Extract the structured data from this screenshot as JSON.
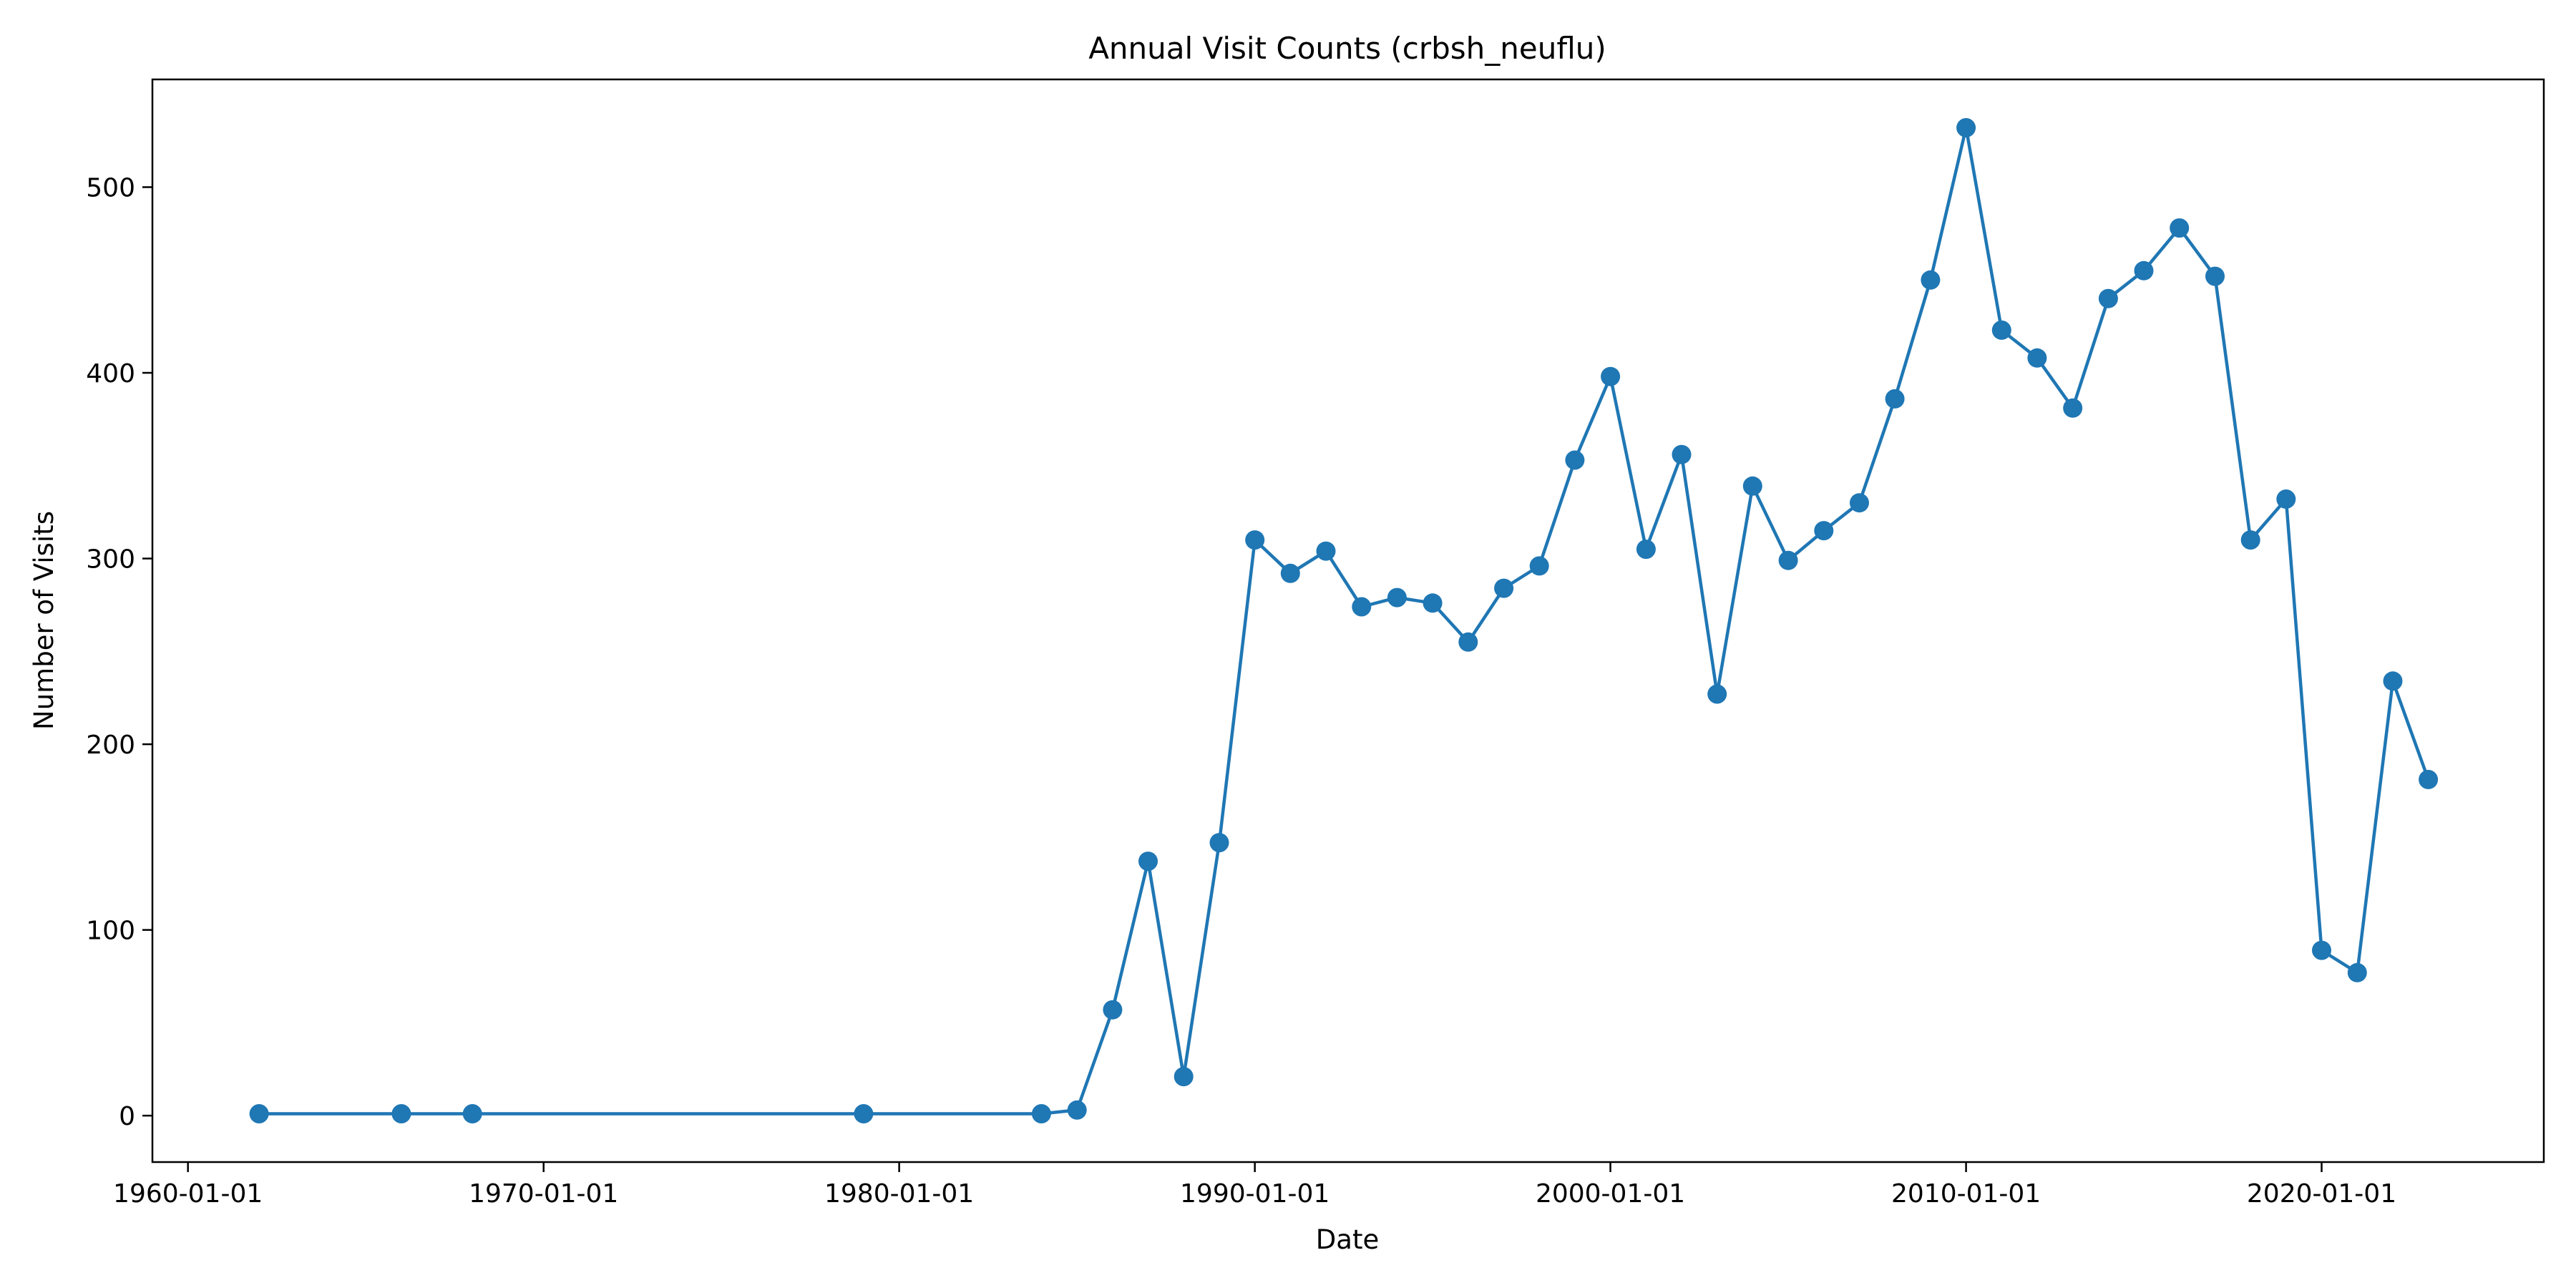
{
  "chart_data": {
    "type": "line",
    "title": "Annual Visit Counts (crbsh_neuflu)",
    "xlabel": "Date",
    "ylabel": "Number of Visits",
    "x_axis_type": "date",
    "xlim": [
      "1959-01-01",
      "2026-04-01"
    ],
    "ylim": [
      -25,
      558
    ],
    "x_ticks": [
      "1960-01-01",
      "1970-01-01",
      "1980-01-01",
      "1990-01-01",
      "2000-01-01",
      "2010-01-01",
      "2020-01-01"
    ],
    "y_ticks": [
      0,
      100,
      200,
      300,
      400,
      500
    ],
    "grid": false,
    "legend": "none",
    "colors": {
      "series": "#1f77b4",
      "axes": "#000000",
      "background": "#ffffff"
    },
    "marker": "circle",
    "series": [
      {
        "x": [
          "1962-01-01",
          "1966-01-01",
          "1968-01-01",
          "1979-01-01",
          "1984-01-01",
          "1985-01-01",
          "1986-01-01",
          "1987-01-01",
          "1988-01-01",
          "1989-01-01",
          "1990-01-01",
          "1991-01-01",
          "1992-01-01",
          "1993-01-01",
          "1994-01-01",
          "1995-01-01",
          "1996-01-01",
          "1997-01-01",
          "1998-01-01",
          "1999-01-01",
          "2000-01-01",
          "2001-01-01",
          "2002-01-01",
          "2003-01-01",
          "2004-01-01",
          "2005-01-01",
          "2006-01-01",
          "2007-01-01",
          "2008-01-01",
          "2009-01-01",
          "2010-01-01",
          "2011-01-01",
          "2012-01-01",
          "2013-01-01",
          "2014-01-01",
          "2015-01-01",
          "2016-01-01",
          "2017-01-01",
          "2018-01-01",
          "2019-01-01",
          "2020-01-01",
          "2021-01-01",
          "2022-01-01",
          "2023-01-01"
        ],
        "values": [
          1,
          1,
          1,
          1,
          1,
          3,
          57,
          137,
          21,
          147,
          310,
          292,
          304,
          274,
          279,
          276,
          255,
          284,
          296,
          353,
          398,
          305,
          356,
          227,
          339,
          299,
          315,
          330,
          386,
          450,
          532,
          423,
          408,
          381,
          440,
          455,
          478,
          452,
          310,
          332,
          89,
          77,
          234,
          181
        ]
      }
    ]
  }
}
